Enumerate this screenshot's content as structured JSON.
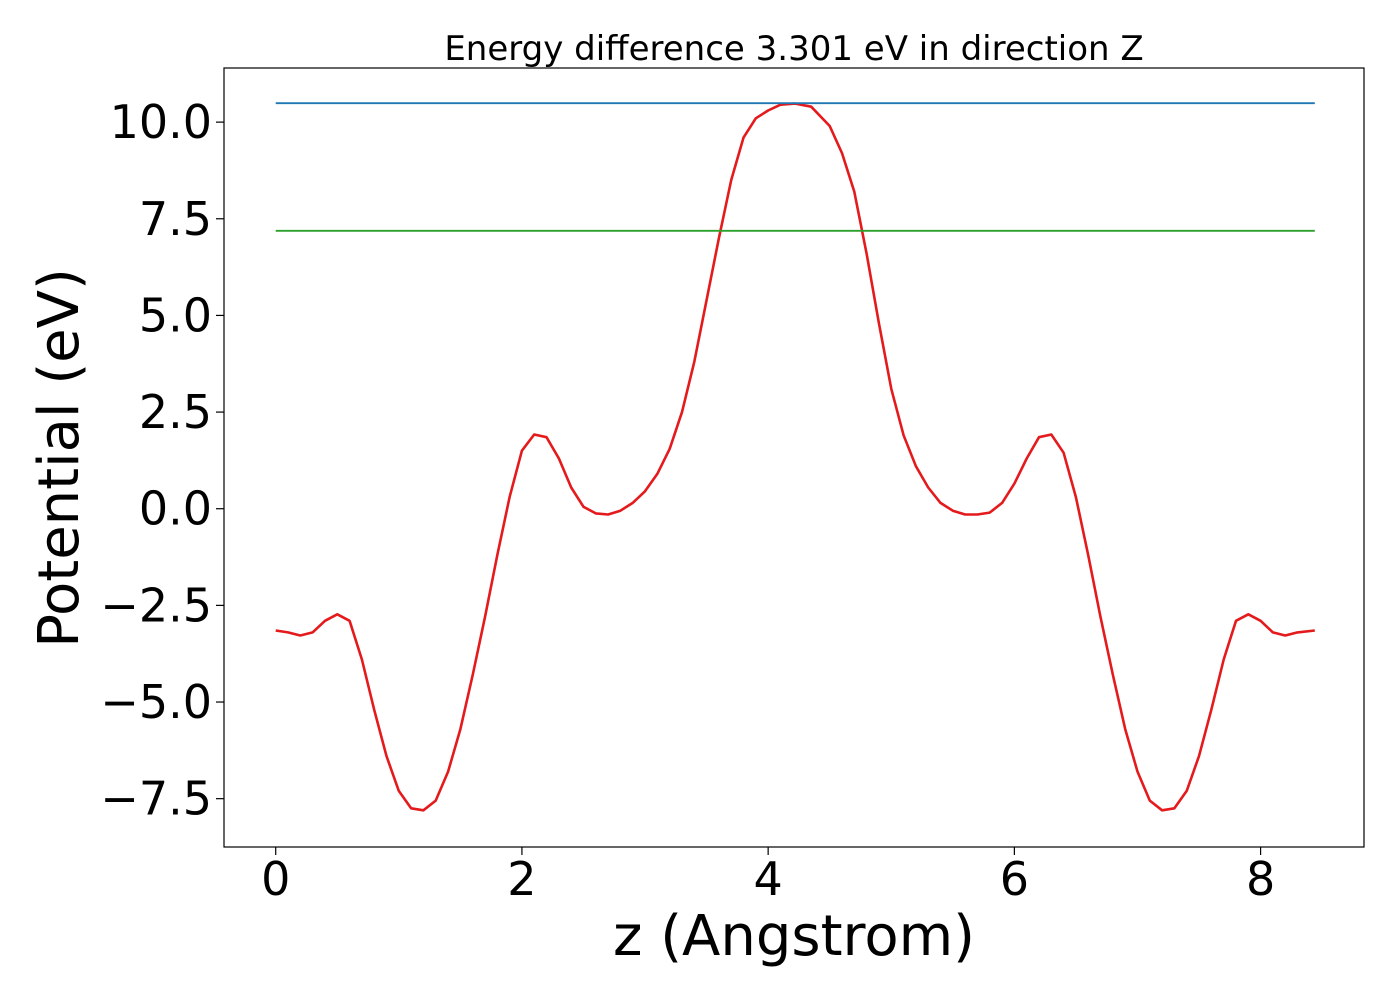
{
  "chart_data": {
    "type": "line",
    "title": "Energy difference 3.301 eV in direction Z",
    "xlabel": "z (Angstrom)",
    "ylabel": "Potential (eV)",
    "xlim": [
      -0.42,
      8.84
    ],
    "ylim": [
      -8.75,
      11.4
    ],
    "xticks": [
      0,
      2,
      4,
      6,
      8
    ],
    "xtick_labels": [
      "0",
      "2",
      "4",
      "6",
      "8"
    ],
    "yticks": [
      -7.5,
      -5.0,
      -2.5,
      0.0,
      2.5,
      5.0,
      7.5,
      10.0
    ],
    "ytick_labels": [
      "−7.5",
      "−5.0",
      "−2.5",
      "0.0",
      "2.5",
      "5.0",
      "7.5",
      "10.0"
    ],
    "grid": false,
    "legend": "none",
    "series": [
      {
        "color": "#e41a1c",
        "x": [
          0.0,
          0.1,
          0.2,
          0.3,
          0.4,
          0.5,
          0.6,
          0.7,
          0.8,
          0.9,
          1.0,
          1.1,
          1.2,
          1.3,
          1.4,
          1.5,
          1.6,
          1.7,
          1.8,
          1.9,
          2.0,
          2.1,
          2.2,
          2.3,
          2.4,
          2.5,
          2.6,
          2.7,
          2.8,
          2.9,
          3.0,
          3.1,
          3.2,
          3.3,
          3.4,
          3.5,
          3.6,
          3.7,
          3.8,
          3.9,
          4.0,
          4.1,
          4.22,
          4.35,
          4.5,
          4.6,
          4.7,
          4.8,
          4.9,
          5.0,
          5.1,
          5.2,
          5.3,
          5.4,
          5.5,
          5.6,
          5.7,
          5.8,
          5.9,
          6.0,
          6.1,
          6.2,
          6.3,
          6.4,
          6.5,
          6.6,
          6.7,
          6.8,
          6.9,
          7.0,
          7.1,
          7.2,
          7.3,
          7.4,
          7.5,
          7.6,
          7.7,
          7.8,
          7.9,
          8.0,
          8.1,
          8.2,
          8.3,
          8.44
        ],
        "y": [
          -3.15,
          -3.2,
          -3.28,
          -3.2,
          -2.9,
          -2.73,
          -2.9,
          -3.9,
          -5.2,
          -6.4,
          -7.3,
          -7.75,
          -7.8,
          -7.55,
          -6.8,
          -5.7,
          -4.3,
          -2.8,
          -1.2,
          0.3,
          1.5,
          1.92,
          1.85,
          1.3,
          0.55,
          0.05,
          -0.12,
          -0.15,
          -0.05,
          0.15,
          0.45,
          0.9,
          1.55,
          2.5,
          3.8,
          5.4,
          7.0,
          8.5,
          9.6,
          10.1,
          10.3,
          10.45,
          10.48,
          10.4,
          9.9,
          9.2,
          8.2,
          6.6,
          4.8,
          3.1,
          1.9,
          1.1,
          0.55,
          0.15,
          -0.05,
          -0.15,
          -0.15,
          -0.1,
          0.15,
          0.65,
          1.3,
          1.85,
          1.92,
          1.45,
          0.3,
          -1.2,
          -2.8,
          -4.3,
          -5.7,
          -6.8,
          -7.55,
          -7.8,
          -7.75,
          -7.3,
          -6.4,
          -5.2,
          -3.9,
          -2.9,
          -2.73,
          -2.9,
          -3.2,
          -3.28,
          -3.2,
          -3.15
        ]
      },
      {
        "color": "#1f77b4",
        "x": [
          0.0,
          8.44
        ],
        "y": [
          10.49,
          10.49
        ]
      },
      {
        "color": "#2ca02c",
        "x": [
          0.0,
          8.44
        ],
        "y": [
          7.19,
          7.19
        ]
      }
    ]
  }
}
